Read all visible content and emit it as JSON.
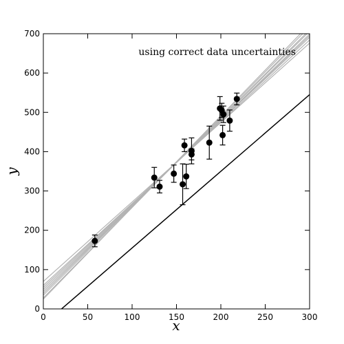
{
  "chart_data": {
    "type": "scatter",
    "xlabel": "x",
    "ylabel": "y",
    "xlim": [
      0,
      300
    ],
    "ylim": [
      0,
      700
    ],
    "xticks": [
      0,
      50,
      100,
      150,
      200,
      250,
      300
    ],
    "yticks": [
      0,
      100,
      200,
      300,
      400,
      500,
      600,
      700
    ],
    "annotation": "using correct data uncertainties",
    "points": [
      {
        "x": 58,
        "y": 173,
        "yerr": 15
      },
      {
        "x": 125,
        "y": 334,
        "yerr": 26
      },
      {
        "x": 131,
        "y": 311,
        "yerr": 16
      },
      {
        "x": 147,
        "y": 344,
        "yerr": 22
      },
      {
        "x": 157,
        "y": 317,
        "yerr": 52
      },
      {
        "x": 159,
        "y": 416,
        "yerr": 16
      },
      {
        "x": 161,
        "y": 337,
        "yerr": 31
      },
      {
        "x": 167,
        "y": 393,
        "yerr": 14
      },
      {
        "x": 167,
        "y": 402,
        "yerr": 33
      },
      {
        "x": 187,
        "y": 423,
        "yerr": 42
      },
      {
        "x": 199,
        "y": 510,
        "yerr": 30
      },
      {
        "x": 201,
        "y": 505,
        "yerr": 18
      },
      {
        "x": 202,
        "y": 442,
        "yerr": 25
      },
      {
        "x": 203,
        "y": 495,
        "yerr": 21
      },
      {
        "x": 210,
        "y": 479,
        "yerr": 27
      },
      {
        "x": 218,
        "y": 534,
        "yerr": 15
      }
    ],
    "sample_lines": [
      {
        "b": 35,
        "m": 2.25
      },
      {
        "b": 40,
        "m": 2.22
      },
      {
        "b": 28,
        "m": 2.3
      },
      {
        "b": 50,
        "m": 2.15
      },
      {
        "b": 60,
        "m": 2.08
      },
      {
        "b": 70,
        "m": 2.02
      },
      {
        "b": 45,
        "m": 2.18
      },
      {
        "b": 25,
        "m": 2.33
      },
      {
        "b": 55,
        "m": 2.12
      }
    ],
    "sample_line_color": "#b3b3b3",
    "true_line": {
      "b": -40,
      "m": 1.95
    },
    "true_line_color": "#000000",
    "point_color": "#000000"
  }
}
